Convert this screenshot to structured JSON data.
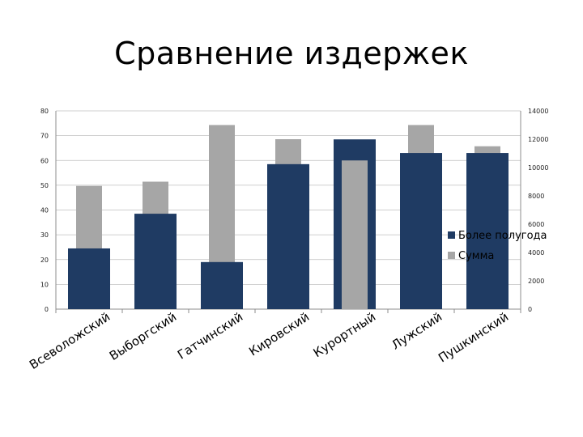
{
  "slide": {
    "title": "Сравнение издержек"
  },
  "chart_data": {
    "type": "bar",
    "title": "",
    "categories": [
      "Всеволожский",
      "Выборгский",
      "Гатчинский",
      "Кировский",
      "Курортный",
      "Лужский",
      "Пушкинский"
    ],
    "series": [
      {
        "name": "Более полугода",
        "axis": "left",
        "color": "#1f3b63",
        "values": [
          24.5,
          38.5,
          19,
          58.5,
          68.5,
          63,
          63
        ]
      },
      {
        "name": "Сумма",
        "axis": "right",
        "color": "#a6a6a6",
        "values": [
          8700,
          9000,
          13000,
          12000,
          10500,
          13000,
          11500
        ]
      }
    ],
    "y_left": {
      "min": 0,
      "max": 80,
      "ticks": [
        0,
        10,
        20,
        30,
        40,
        50,
        60,
        70,
        80
      ]
    },
    "y_right": {
      "min": 0,
      "max": 14000,
      "ticks": [
        0,
        2000,
        4000,
        6000,
        8000,
        10000,
        12000,
        14000
      ]
    },
    "grid": true,
    "legend": "right"
  }
}
